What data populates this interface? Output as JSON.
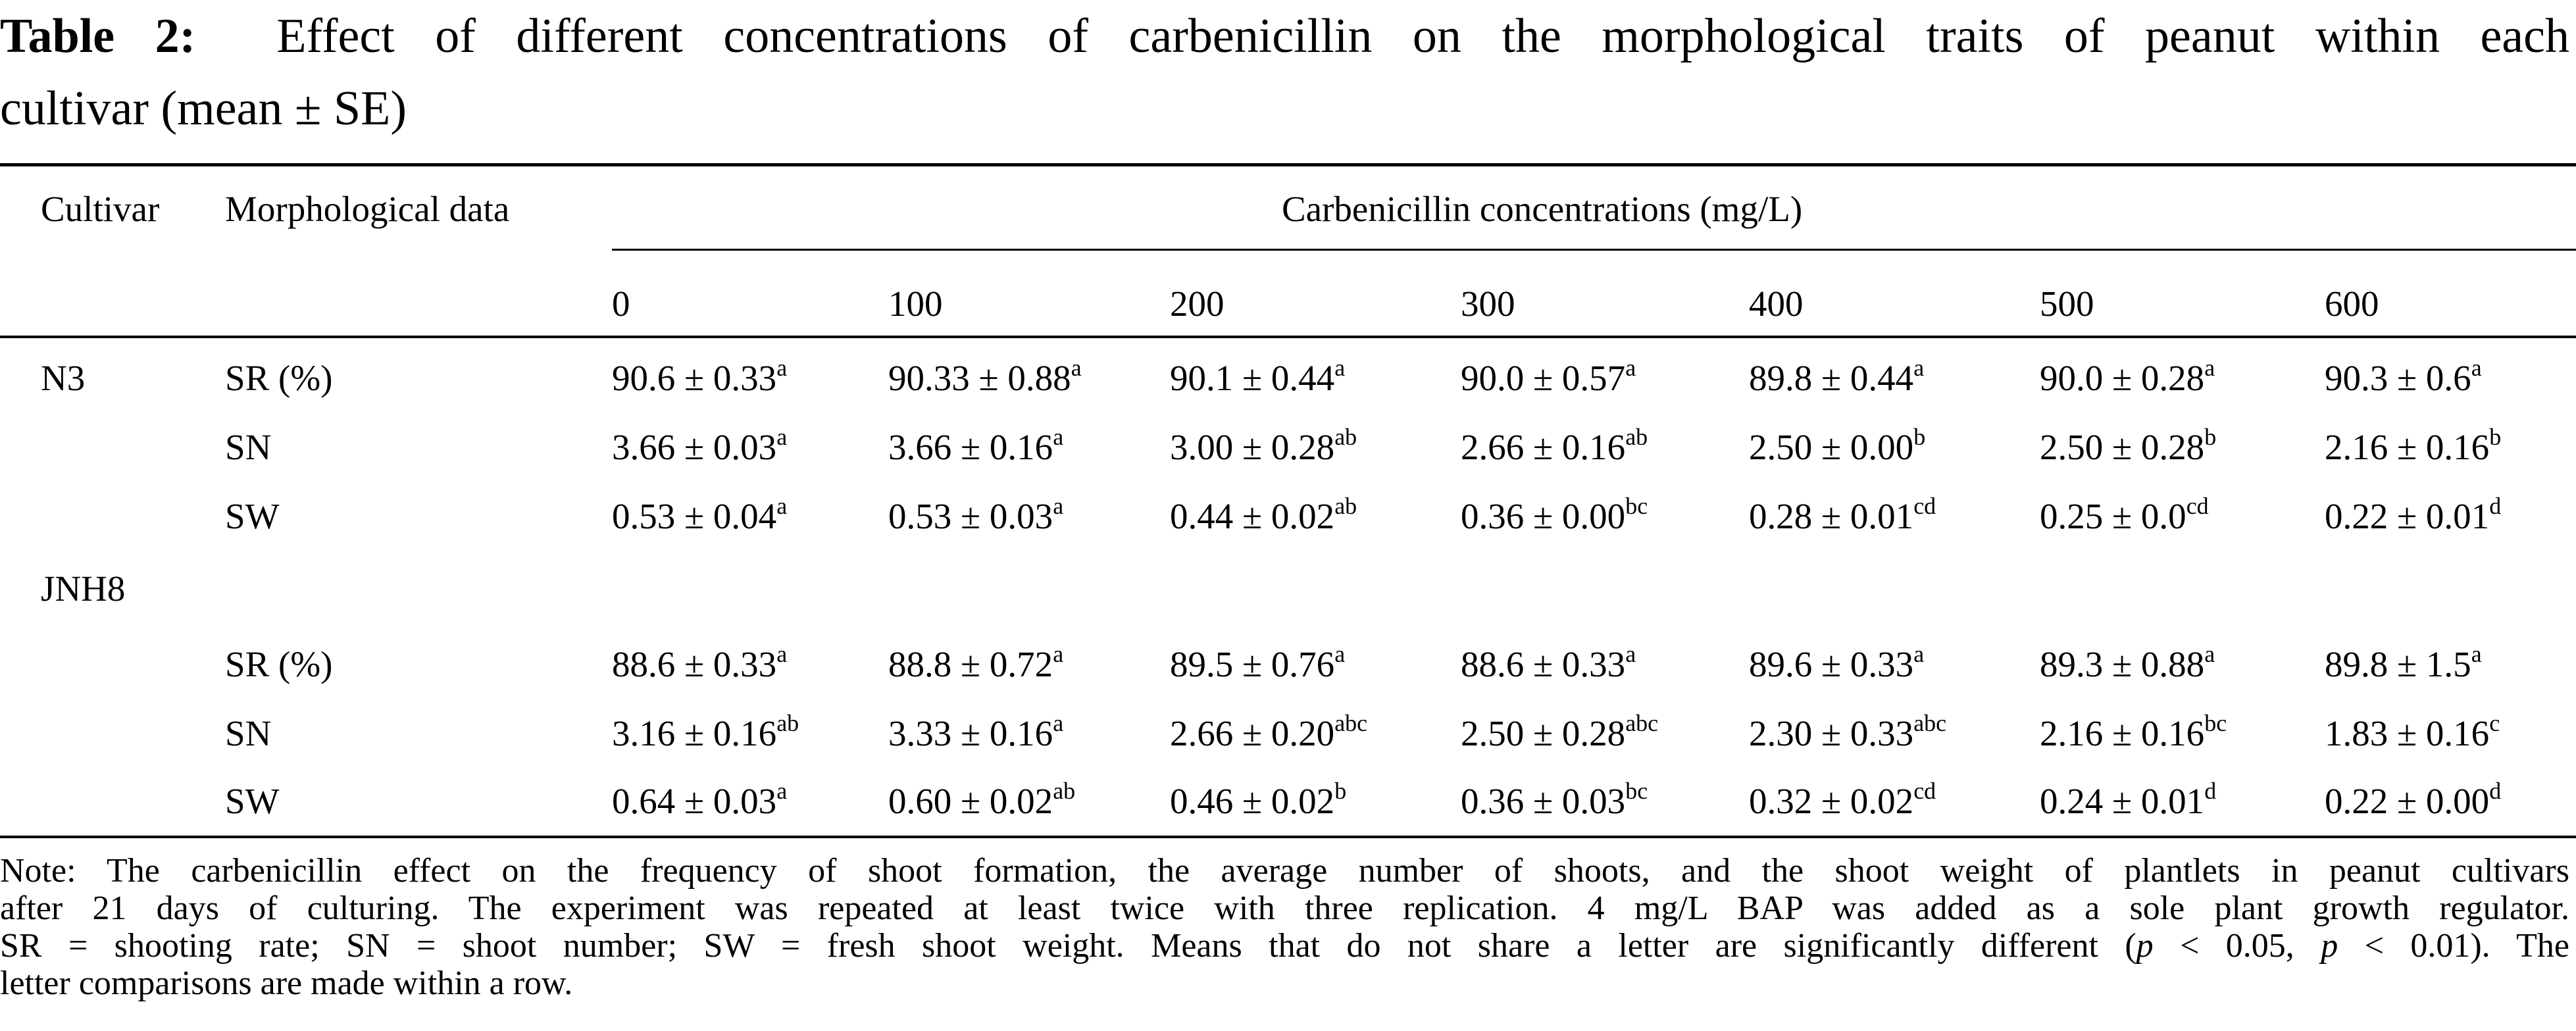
{
  "title": {
    "label": "Table 2:",
    "line1": "Effect of different concentrations of carbenicillin on the morphological traits of peanut within each",
    "line2": "cultivar (mean ± SE)"
  },
  "headers": {
    "cultivar": "Cultivar",
    "morphological": "Morphological data",
    "concentrations": "Carbenicillin concentrations (mg/L)",
    "levels": [
      "0",
      "100",
      "200",
      "300",
      "400",
      "500",
      "600"
    ]
  },
  "groups": [
    {
      "cultivar": "N3",
      "rows": [
        {
          "trait": "SR (%)",
          "cells": [
            {
              "value": "90.6 ± 0.33",
              "sig": "a"
            },
            {
              "value": "90.33 ± 0.88",
              "sig": "a"
            },
            {
              "value": "90.1 ± 0.44",
              "sig": "a"
            },
            {
              "value": "90.0 ± 0.57",
              "sig": "a"
            },
            {
              "value": "89.8 ± 0.44",
              "sig": "a"
            },
            {
              "value": "90.0 ± 0.28",
              "sig": "a"
            },
            {
              "value": "90.3 ± 0.6",
              "sig": "a"
            }
          ]
        },
        {
          "trait": "SN",
          "cells": [
            {
              "value": "3.66 ± 0.03",
              "sig": "a"
            },
            {
              "value": "3.66 ± 0.16",
              "sig": "a"
            },
            {
              "value": "3.00 ± 0.28",
              "sig": "ab"
            },
            {
              "value": "2.66 ± 0.16",
              "sig": "ab"
            },
            {
              "value": "2.50 ± 0.00",
              "sig": "b"
            },
            {
              "value": "2.50 ± 0.28",
              "sig": "b"
            },
            {
              "value": "2.16 ± 0.16",
              "sig": "b"
            }
          ]
        },
        {
          "trait": "SW",
          "cells": [
            {
              "value": "0.53 ± 0.04",
              "sig": "a"
            },
            {
              "value": "0.53 ± 0.03",
              "sig": "a"
            },
            {
              "value": "0.44 ± 0.02",
              "sig": "ab"
            },
            {
              "value": "0.36 ± 0.00",
              "sig": "bc"
            },
            {
              "value": "0.28 ± 0.01",
              "sig": "cd"
            },
            {
              "value": "0.25 ± 0.0",
              "sig": "cd"
            },
            {
              "value": "0.22 ± 0.01",
              "sig": "d"
            }
          ]
        }
      ]
    },
    {
      "cultivar": "JNH8",
      "rows": [
        {
          "trait": "SR (%)",
          "cells": [
            {
              "value": "88.6 ± 0.33",
              "sig": "a"
            },
            {
              "value": "88.8 ± 0.72",
              "sig": "a"
            },
            {
              "value": "89.5 ± 0.76",
              "sig": "a"
            },
            {
              "value": "88.6 ± 0.33",
              "sig": "a"
            },
            {
              "value": "89.6 ± 0.33",
              "sig": "a"
            },
            {
              "value": "89.3 ± 0.88",
              "sig": "a"
            },
            {
              "value": "89.8 ± 1.5",
              "sig": "a"
            }
          ]
        },
        {
          "trait": "SN",
          "cells": [
            {
              "value": "3.16 ± 0.16",
              "sig": "ab"
            },
            {
              "value": "3.33 ± 0.16",
              "sig": "a"
            },
            {
              "value": "2.66 ± 0.20",
              "sig": "abc"
            },
            {
              "value": "2.50 ± 0.28",
              "sig": "abc"
            },
            {
              "value": "2.30 ± 0.33",
              "sig": "abc"
            },
            {
              "value": "2.16 ± 0.16",
              "sig": "bc"
            },
            {
              "value": "1.83 ± 0.16",
              "sig": "c"
            }
          ]
        },
        {
          "trait": "SW",
          "cells": [
            {
              "value": "0.64 ± 0.03",
              "sig": "a"
            },
            {
              "value": "0.60 ± 0.02",
              "sig": "ab"
            },
            {
              "value": "0.46 ± 0.02",
              "sig": "b"
            },
            {
              "value": "0.36 ± 0.03",
              "sig": "bc"
            },
            {
              "value": "0.32 ± 0.02",
              "sig": "cd"
            },
            {
              "value": "0.24 ± 0.01",
              "sig": "d"
            },
            {
              "value": "0.22 ± 0.00",
              "sig": "d"
            }
          ]
        }
      ]
    }
  ],
  "note": {
    "line1": "Note: The carbenicillin effect on the frequency of shoot formation, the average number of shoots, and the shoot weight of plantlets in peanut cultivars",
    "line2": "after 21 days of culturing. The experiment was repeated at least twice with three replication. 4 mg/L BAP was added as a sole plant growth regulator.",
    "line3a": "SR = shooting rate; SN = shoot number; SW = fresh shoot weight. Means that do not share a letter are significantly different (",
    "p": "p",
    "line3b": " < 0.05, ",
    "line3c": " < 0.01). The",
    "line4": "letter comparisons are made within a row."
  }
}
